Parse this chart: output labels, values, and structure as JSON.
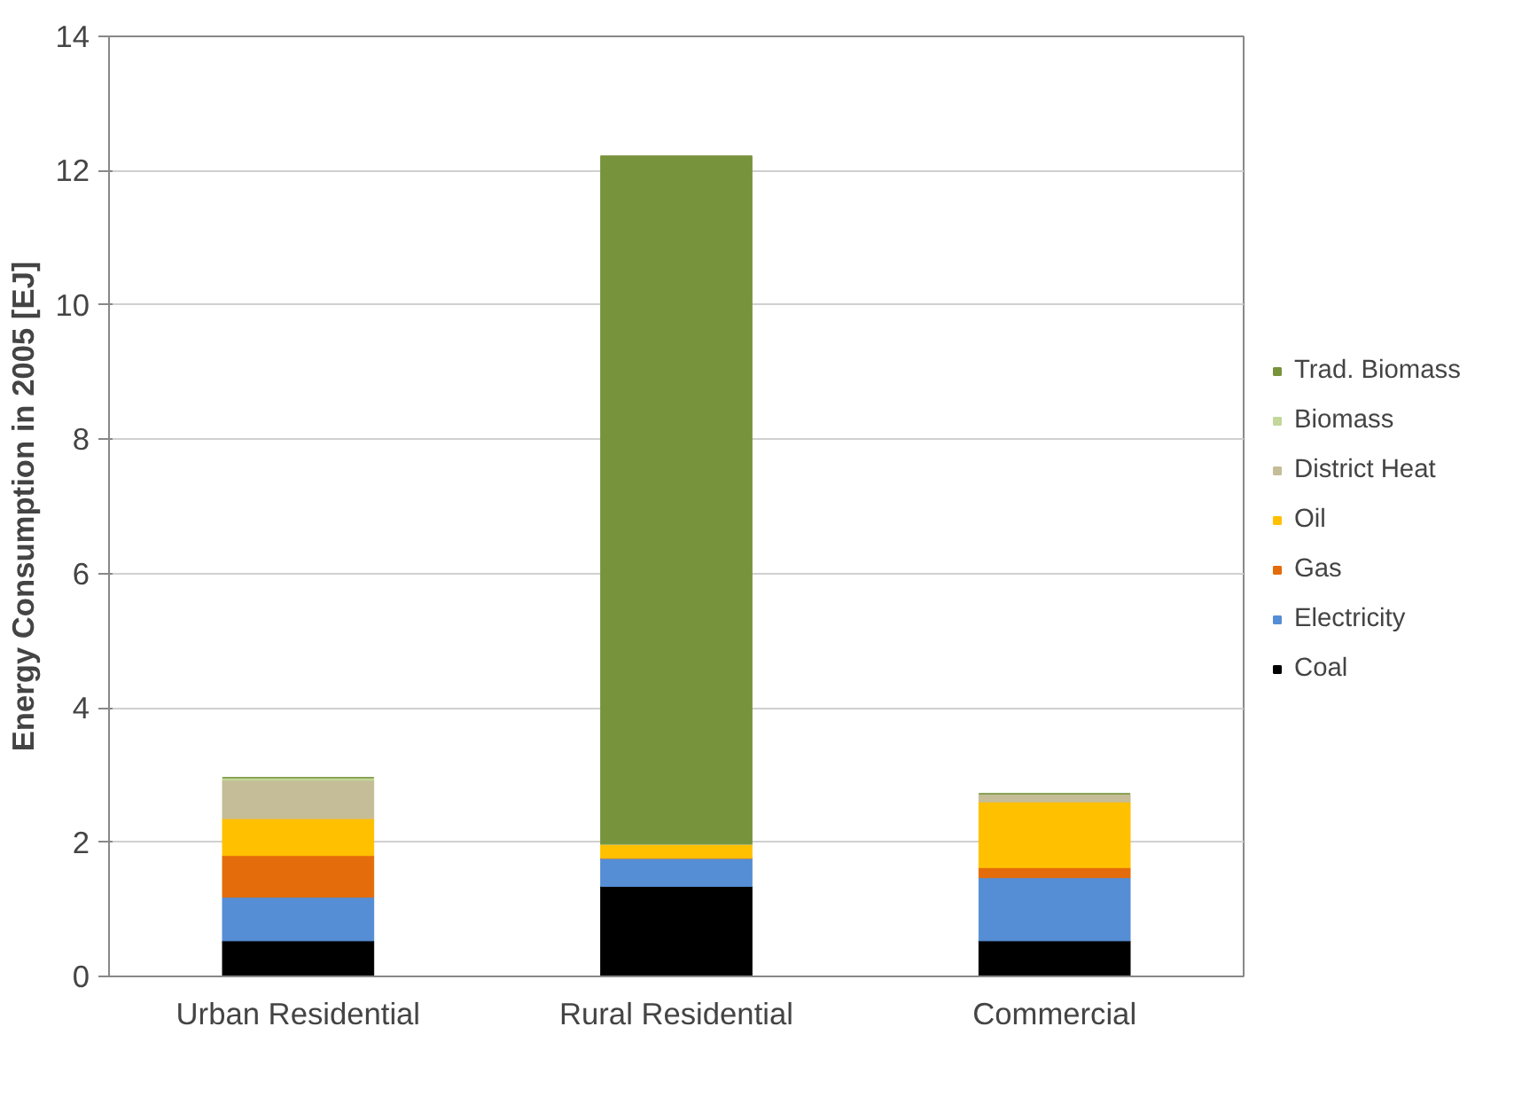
{
  "chart_data": {
    "type": "bar",
    "stacked": true,
    "ylabel": "Energy Consumption in 2005 [EJ]",
    "categories": [
      "Urban Residential",
      "Rural Residential",
      "Commercial"
    ],
    "series": [
      {
        "name": "Coal",
        "color": "#000000",
        "values": [
          0.53,
          1.34,
          0.53
        ]
      },
      {
        "name": "Electricity",
        "color": "#558ed5",
        "values": [
          0.65,
          0.42,
          0.94
        ]
      },
      {
        "name": "Gas",
        "color": "#e46c0a",
        "values": [
          0.62,
          0,
          0.15
        ]
      },
      {
        "name": "Oil",
        "color": "#ffc000",
        "values": [
          0.55,
          0.21,
          0.98
        ]
      },
      {
        "name": "District Heat",
        "color": "#c4bd97",
        "values": [
          0.57,
          0,
          0.12
        ]
      },
      {
        "name": "Biomass",
        "color": "#c3d69b",
        "values": [
          0.04,
          0,
          0
        ]
      },
      {
        "name": "Trad. Biomass",
        "color": "#77933c",
        "values": [
          0,
          10.25,
          0
        ]
      }
    ],
    "ylim": [
      0,
      14
    ],
    "yticks": [
      0,
      2,
      4,
      6,
      8,
      10,
      12,
      14
    ],
    "grid": "y",
    "legend": "right"
  }
}
